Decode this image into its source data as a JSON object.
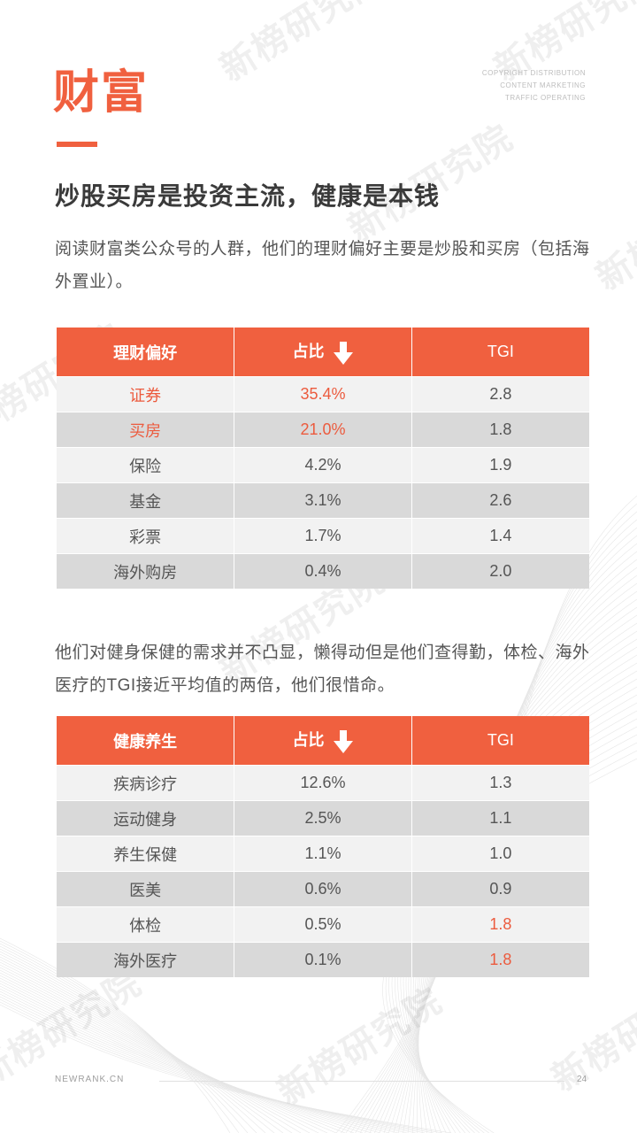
{
  "brand": {
    "watermark": "新榜研究院",
    "corner_lines": [
      "COPYRIGHT DISTRIBUTION",
      "CONTENT MARKETING",
      "TRAFFIC OPERATING"
    ]
  },
  "section_title": "财富",
  "headline": "炒股买房是投资主流，健康是本钱",
  "intro": "阅读财富类公众号的人群，他们的理财偏好主要是炒股和买房（包括海外置业）。",
  "table1": {
    "headers": [
      "理财偏好",
      "占比",
      "TGI"
    ],
    "rows": [
      {
        "label": "证券",
        "share": "35.4%",
        "tgi": "2.8"
      },
      {
        "label": "买房",
        "share": "21.0%",
        "tgi": "1.8"
      },
      {
        "label": "保险",
        "share": "4.2%",
        "tgi": "1.9"
      },
      {
        "label": "基金",
        "share": "3.1%",
        "tgi": "2.6"
      },
      {
        "label": "彩票",
        "share": "1.7%",
        "tgi": "1.4"
      },
      {
        "label": "海外购房",
        "share": "0.4%",
        "tgi": "2.0"
      }
    ]
  },
  "middle_text": "他们对健身保健的需求并不凸显，懒得动但是他们查得勤，体检、海外医疗的TGI接近平均值的两倍，他们很惜命。",
  "table2": {
    "headers": [
      "健康养生",
      "占比",
      "TGI"
    ],
    "rows": [
      {
        "label": "疾病诊疗",
        "share": "12.6%",
        "tgi": "1.3"
      },
      {
        "label": "运动健身",
        "share": "2.5%",
        "tgi": "1.1"
      },
      {
        "label": "养生保健",
        "share": "1.1%",
        "tgi": "1.0"
      },
      {
        "label": "医美",
        "share": "0.6%",
        "tgi": "0.9"
      },
      {
        "label": "体检",
        "share": "0.5%",
        "tgi": "1.8"
      },
      {
        "label": "海外医疗",
        "share": "0.1%",
        "tgi": "1.8"
      }
    ]
  },
  "footer": {
    "site": "NEWRANK.CN",
    "page": "24"
  },
  "colors": {
    "accent": "#f0603f",
    "highlight_text": "#ec5b3e",
    "row_light": "#f2f2f2",
    "row_dark": "#d9d9d9"
  },
  "icons": {
    "sort": "arrow-down-icon"
  }
}
